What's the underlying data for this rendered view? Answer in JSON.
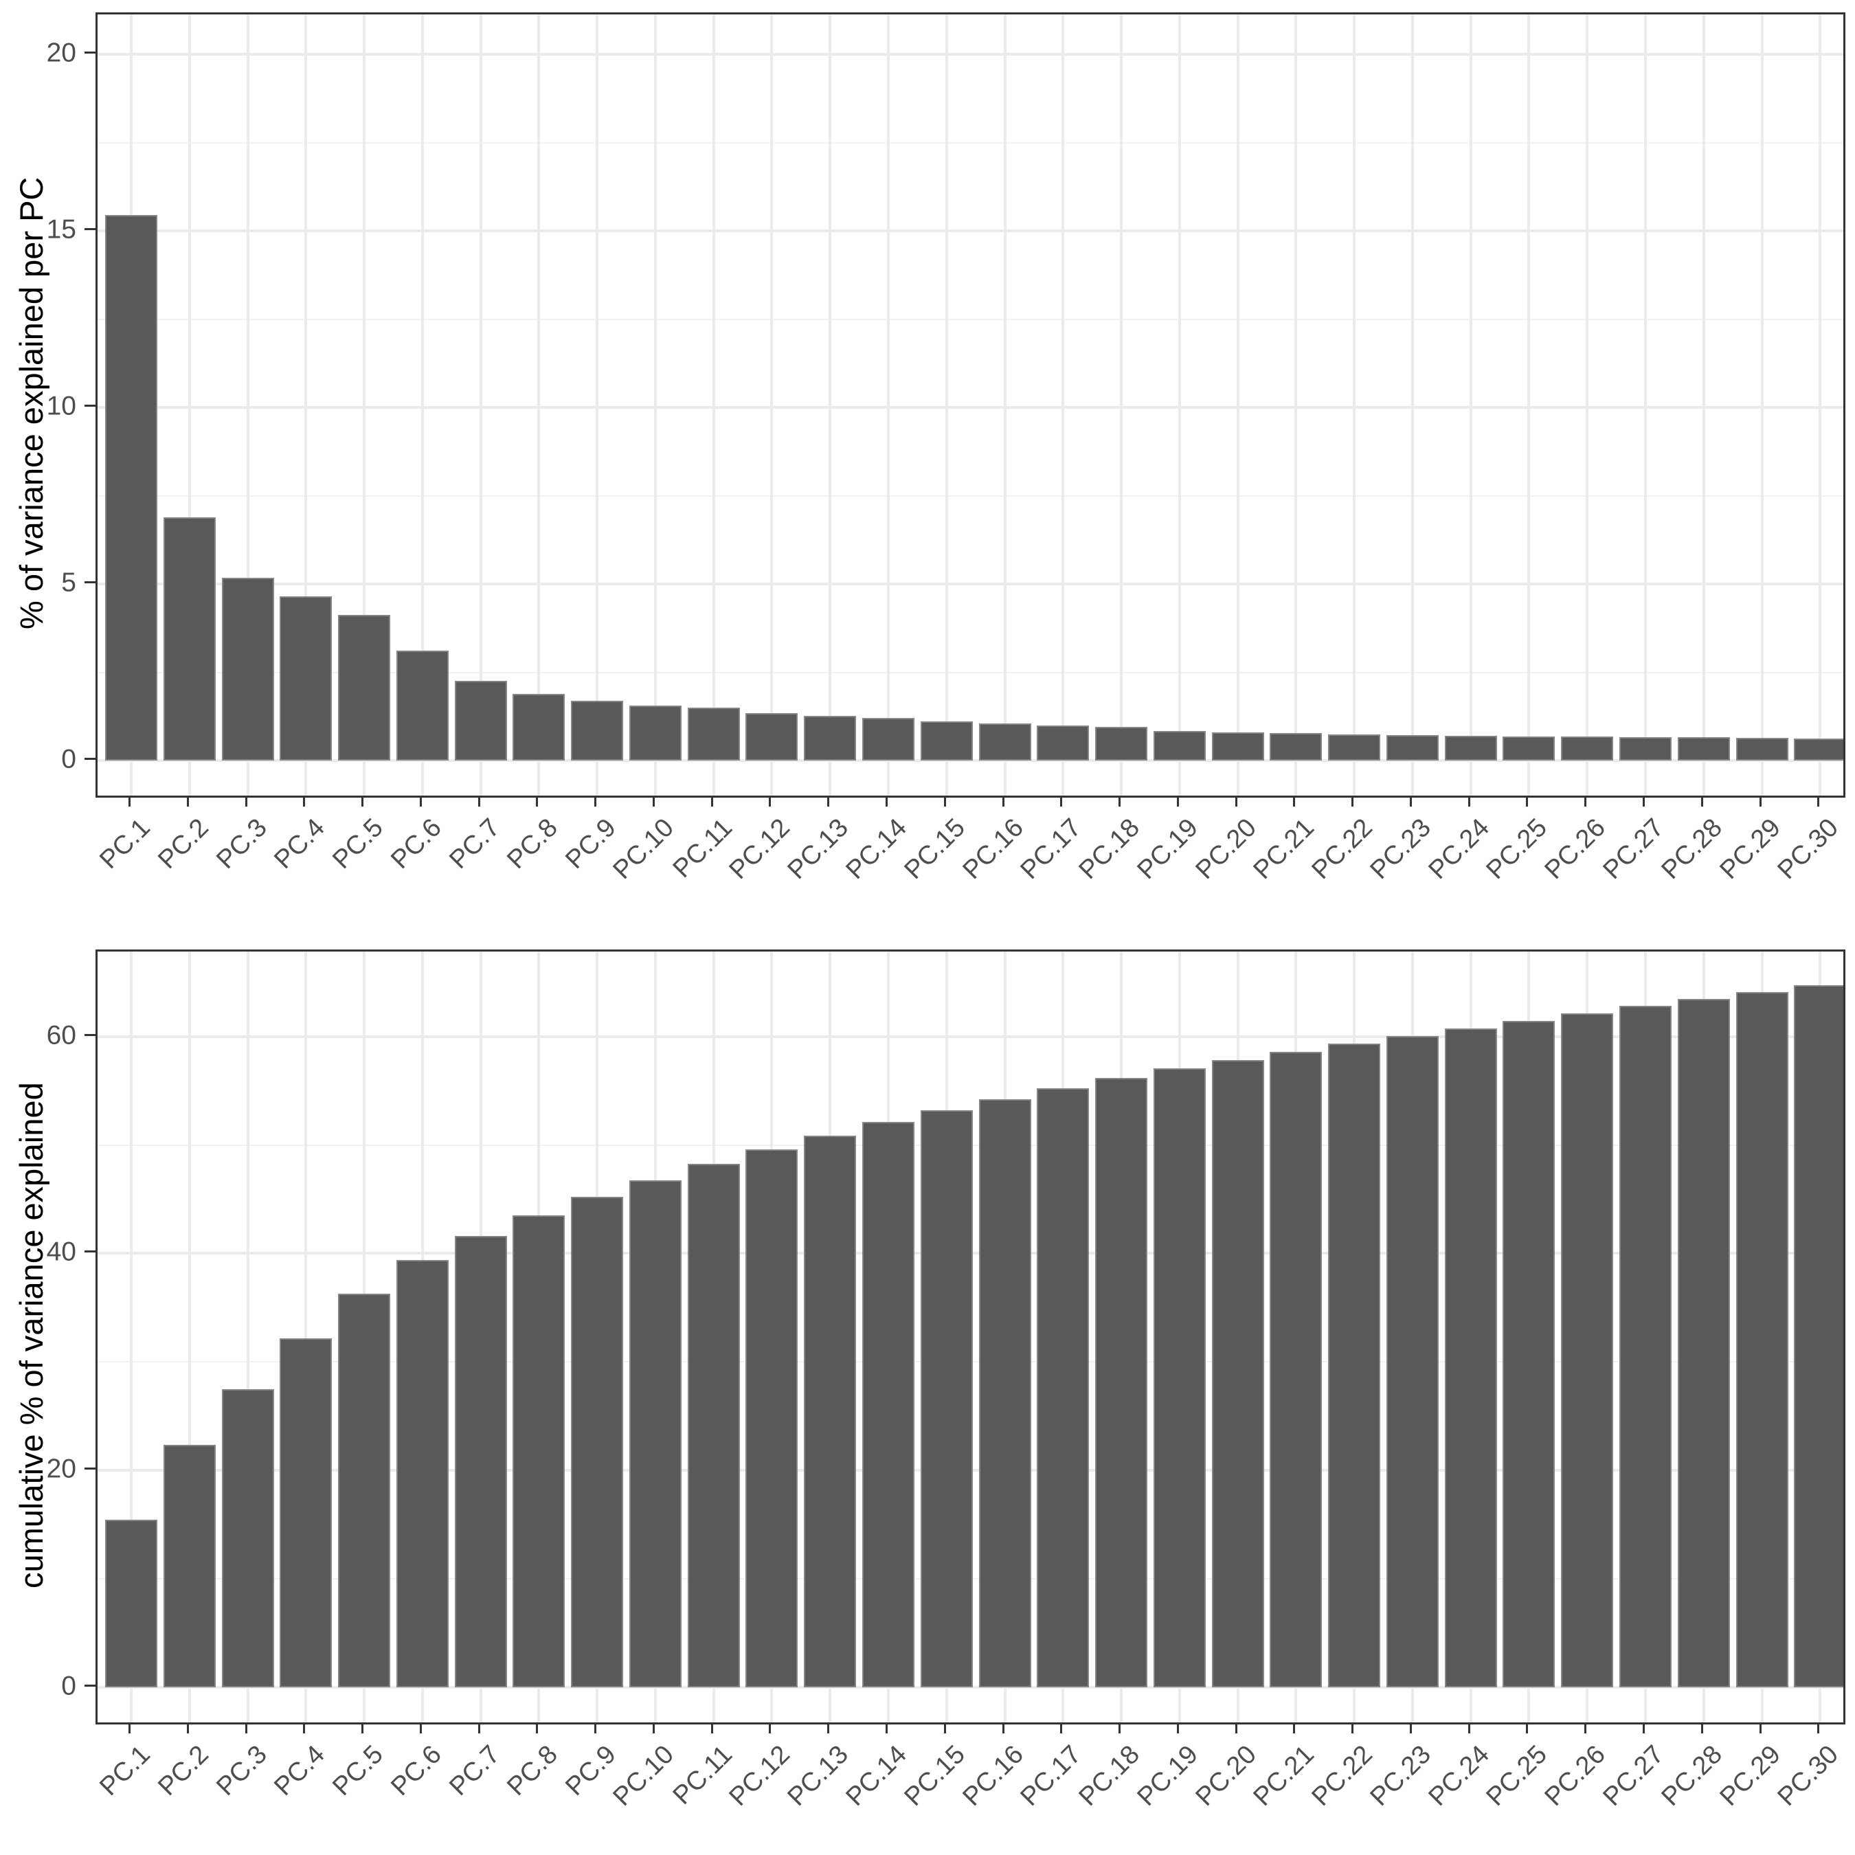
{
  "page": {
    "background": "#ffffff"
  },
  "colors": {
    "bar_fill": "#595959",
    "bar_edge": "#858585",
    "grid_major": "#ebebeb",
    "grid_minor": "#f2f2f2",
    "panel_border": "#333333",
    "tick_mark": "#333333",
    "tick_label": "#4d4d4d",
    "axis_title": "#000000"
  },
  "chart_data": [
    {
      "type": "bar",
      "title": "",
      "xlabel": "",
      "ylabel": "% of variance explained per PC",
      "categories": [
        "PC.1",
        "PC.2",
        "PC.3",
        "PC.4",
        "PC.5",
        "PC.6",
        "PC.7",
        "PC.8",
        "PC.9",
        "PC.10",
        "PC.11",
        "PC.12",
        "PC.13",
        "PC.14",
        "PC.15",
        "PC.16",
        "PC.17",
        "PC.18",
        "PC.19",
        "PC.20",
        "PC.21",
        "PC.22",
        "PC.23",
        "PC.24",
        "PC.25",
        "PC.26",
        "PC.27",
        "PC.28",
        "PC.29",
        "PC.30"
      ],
      "values": [
        15.45,
        6.89,
        5.17,
        4.65,
        4.12,
        3.11,
        2.25,
        1.88,
        1.7,
        1.55,
        1.49,
        1.35,
        1.27,
        1.21,
        1.1,
        1.05,
        1.0,
        0.96,
        0.83,
        0.8,
        0.77,
        0.74,
        0.72,
        0.7,
        0.69,
        0.68,
        0.67,
        0.66,
        0.64,
        0.63
      ],
      "yticks": [
        0,
        5,
        10,
        15,
        20
      ],
      "ytick_labels": [
        "0",
        "5",
        "10",
        "15",
        "20"
      ],
      "yticks_minor": [
        2.5,
        7.5,
        12.5,
        17.5
      ],
      "ylim": [
        0,
        21
      ],
      "grid": true,
      "legend": null
    },
    {
      "type": "bar",
      "title": "",
      "xlabel": "",
      "ylabel": "cumulative % of variance explained",
      "categories": [
        "PC.1",
        "PC.2",
        "PC.3",
        "PC.4",
        "PC.5",
        "PC.6",
        "PC.7",
        "PC.8",
        "PC.9",
        "PC.10",
        "PC.11",
        "PC.12",
        "PC.13",
        "PC.14",
        "PC.15",
        "PC.16",
        "PC.17",
        "PC.18",
        "PC.19",
        "PC.20",
        "PC.21",
        "PC.22",
        "PC.23",
        "PC.24",
        "PC.25",
        "PC.26",
        "PC.27",
        "PC.28",
        "PC.29",
        "PC.30"
      ],
      "values": [
        15.45,
        22.34,
        27.51,
        32.16,
        36.28,
        39.39,
        41.64,
        43.52,
        45.22,
        46.77,
        48.26,
        49.61,
        50.88,
        52.09,
        53.19,
        54.24,
        55.24,
        56.2,
        57.03,
        57.83,
        58.6,
        59.34,
        60.06,
        60.76,
        61.45,
        62.13,
        62.8,
        63.46,
        64.1,
        64.73
      ],
      "yticks": [
        0,
        20,
        40,
        60
      ],
      "ytick_labels": [
        "0",
        "20",
        "40",
        "60"
      ],
      "yticks_minor": [
        10,
        30,
        50
      ],
      "ylim": [
        0,
        68
      ],
      "grid": true,
      "legend": null
    }
  ]
}
